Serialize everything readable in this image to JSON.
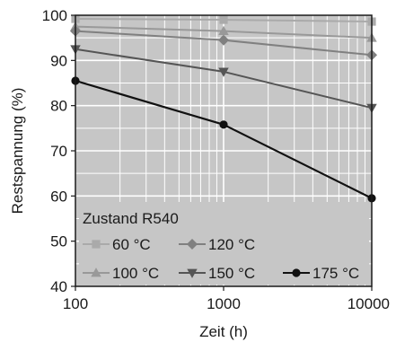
{
  "chart_data": {
    "type": "line",
    "x_scale": "log",
    "xlabel": "Zeit (h)",
    "ylabel": "Restspannung (%)",
    "xlim": [
      100,
      10000
    ],
    "ylim": [
      40,
      100
    ],
    "x_ticks": [
      "100",
      "1000",
      "10000"
    ],
    "y_ticks": [
      "40",
      "50",
      "60",
      "70",
      "80",
      "90",
      "100"
    ],
    "grid": true,
    "legend_title": "Zustand R540",
    "legend_position": "bottom-left",
    "x": [
      100,
      1000,
      10000
    ],
    "series": [
      {
        "name": "60 °C",
        "values": [
          99.2,
          99.0,
          98.6
        ],
        "color": "#aaaaaa",
        "marker": "square"
      },
      {
        "name": "100 °C",
        "values": [
          97.5,
          96.5,
          95.0
        ],
        "color": "#999999",
        "marker": "triangle-up"
      },
      {
        "name": "120 °C",
        "values": [
          96.5,
          94.5,
          91.2
        ],
        "color": "#808080",
        "marker": "diamond"
      },
      {
        "name": "150 °C",
        "values": [
          92.5,
          87.5,
          79.5
        ],
        "color": "#555555",
        "marker": "triangle-down"
      },
      {
        "name": "175 °C",
        "values": [
          85.5,
          75.8,
          59.5
        ],
        "color": "#111111",
        "marker": "circle"
      }
    ]
  }
}
